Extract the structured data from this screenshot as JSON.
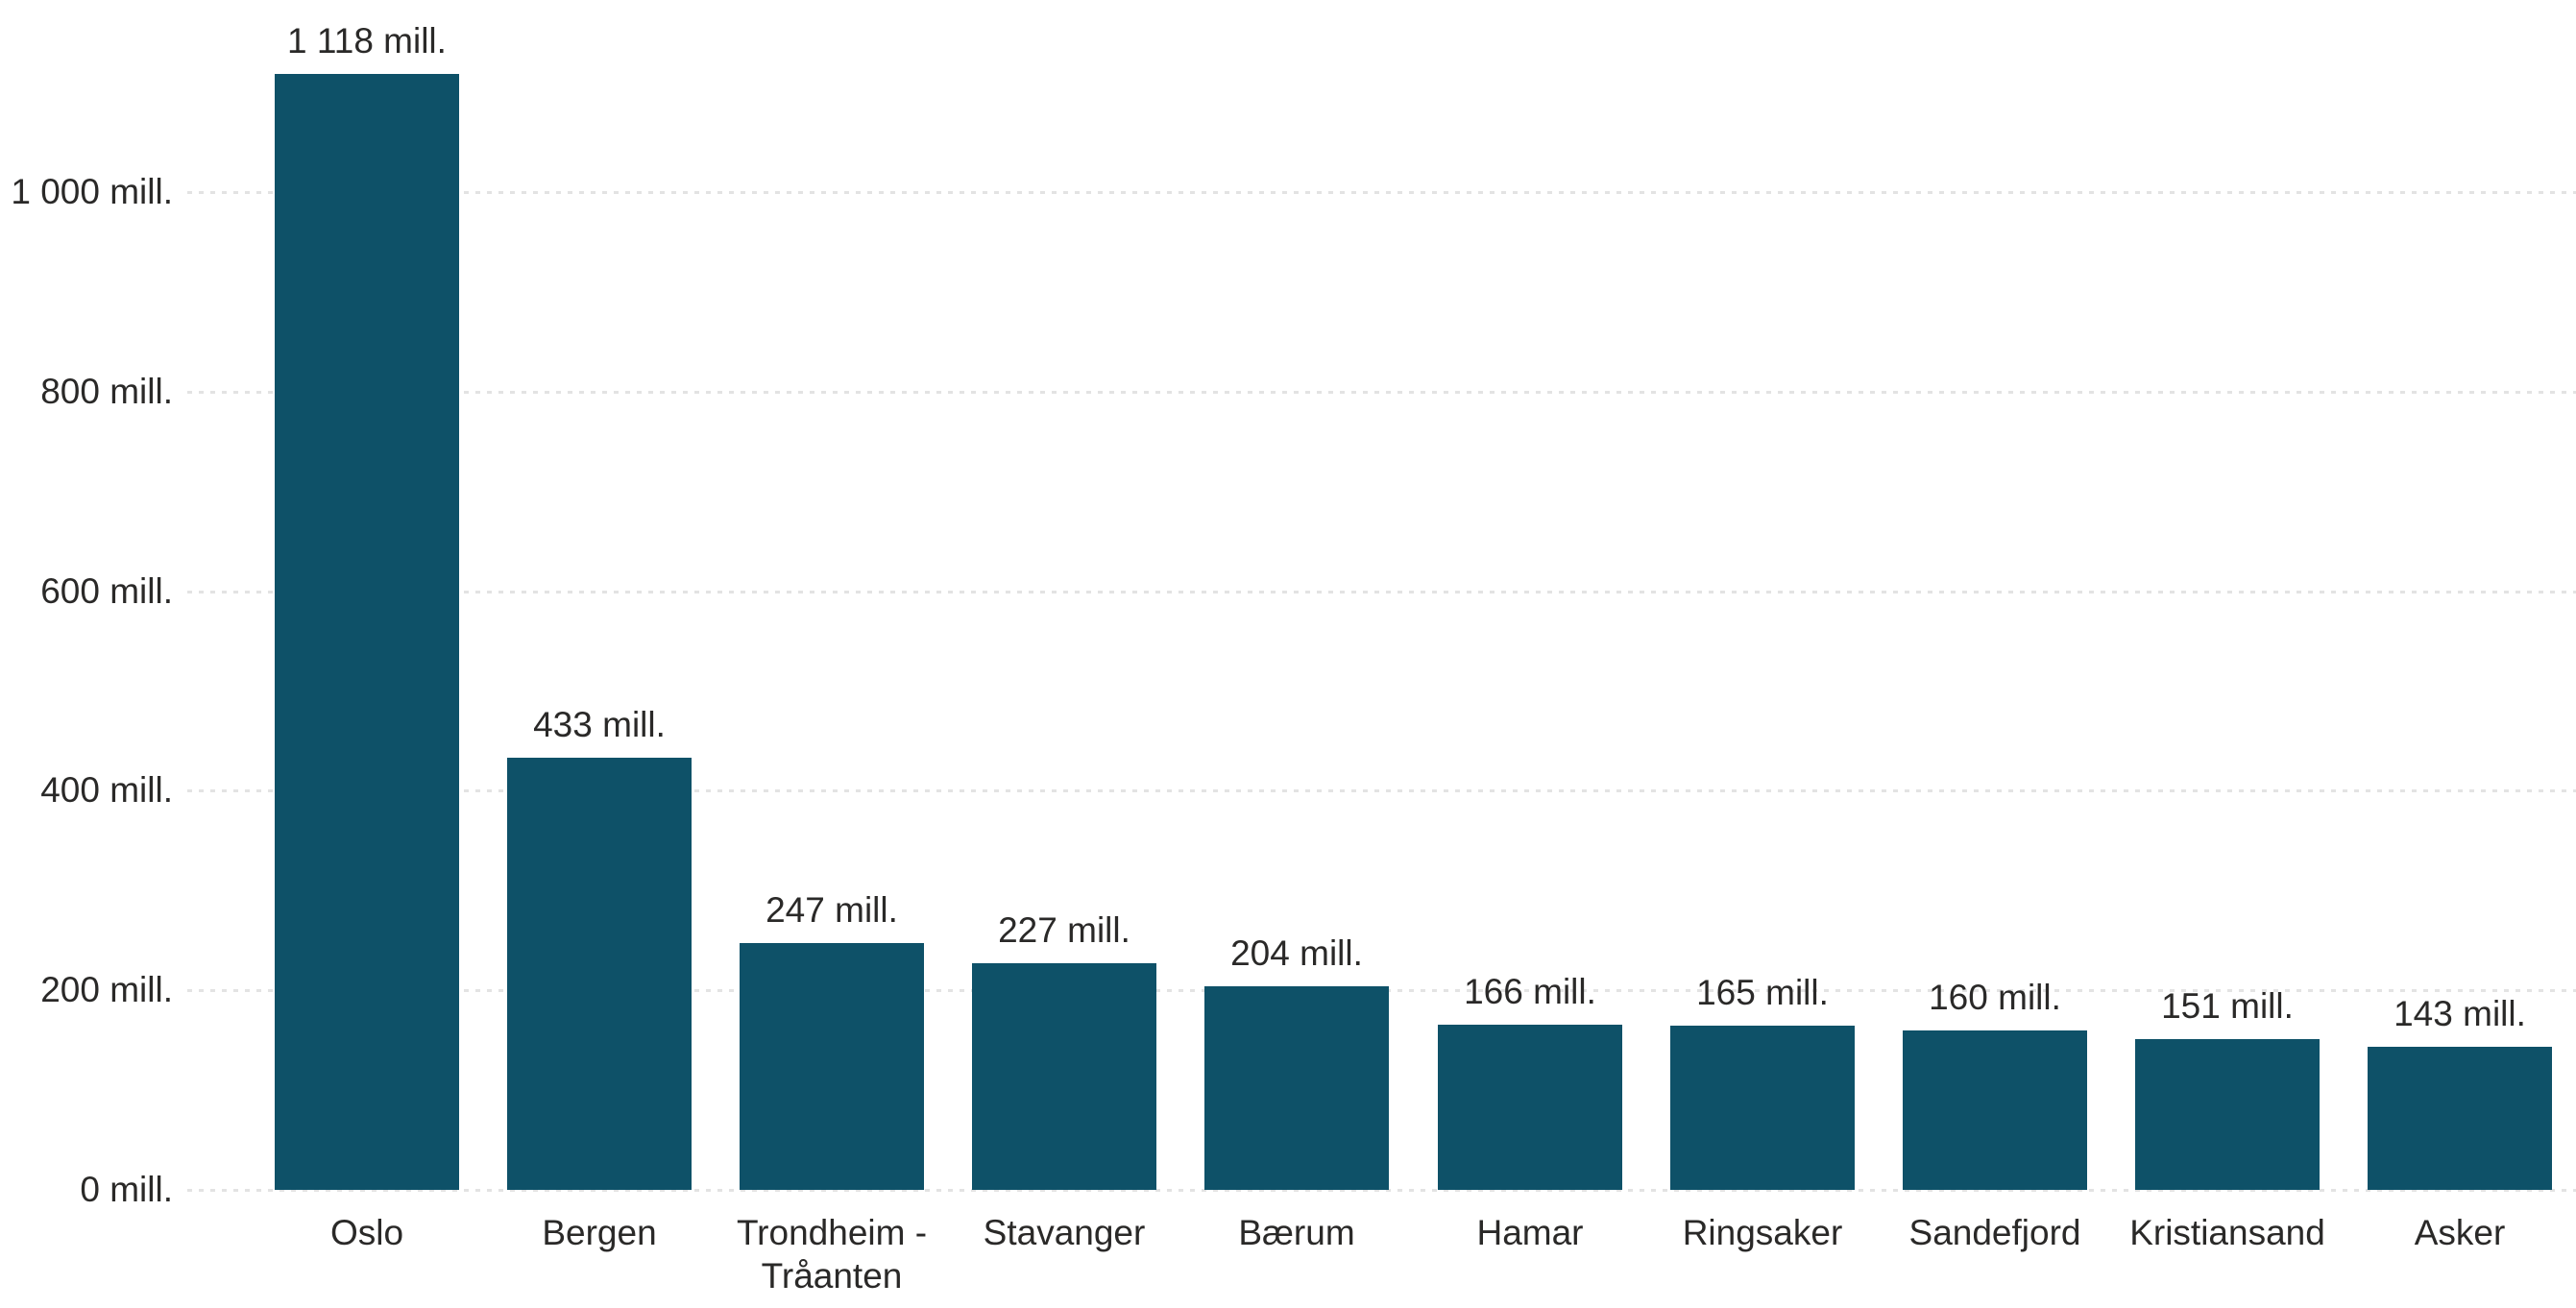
{
  "chart_data": {
    "type": "bar",
    "title": "",
    "categories": [
      "Oslo",
      "Bergen",
      "Trondheim - Tråanten",
      "Stavanger",
      "Bærum",
      "Hamar",
      "Ringsaker",
      "Sandefjord",
      "Kristiansand",
      "Asker"
    ],
    "values": [
      1118,
      433,
      247,
      227,
      204,
      166,
      165,
      160,
      151,
      143
    ],
    "value_labels": [
      "1 118 mill.",
      "433 mill.",
      "247 mill.",
      "227 mill.",
      "204 mill.",
      "166 mill.",
      "165 mill.",
      "160 mill.",
      "151 mill.",
      "143 mill."
    ],
    "y_axis": {
      "unit": "mill.",
      "tick_values": [
        0,
        200,
        400,
        600,
        800,
        1000
      ],
      "tick_labels": [
        "0 mill.",
        "200 mill.",
        "400 mill.",
        "600 mill.",
        "800 mill.",
        "1 000 mill."
      ],
      "ylim": [
        0,
        1000
      ]
    },
    "x_axis": {
      "label": ""
    },
    "grid": "horizontal-dotted",
    "legend": "none",
    "colors": {
      "bar": "#0e5168",
      "grid": "#e3e3e3",
      "text": "#2a2928",
      "background": "#ffffff"
    }
  }
}
